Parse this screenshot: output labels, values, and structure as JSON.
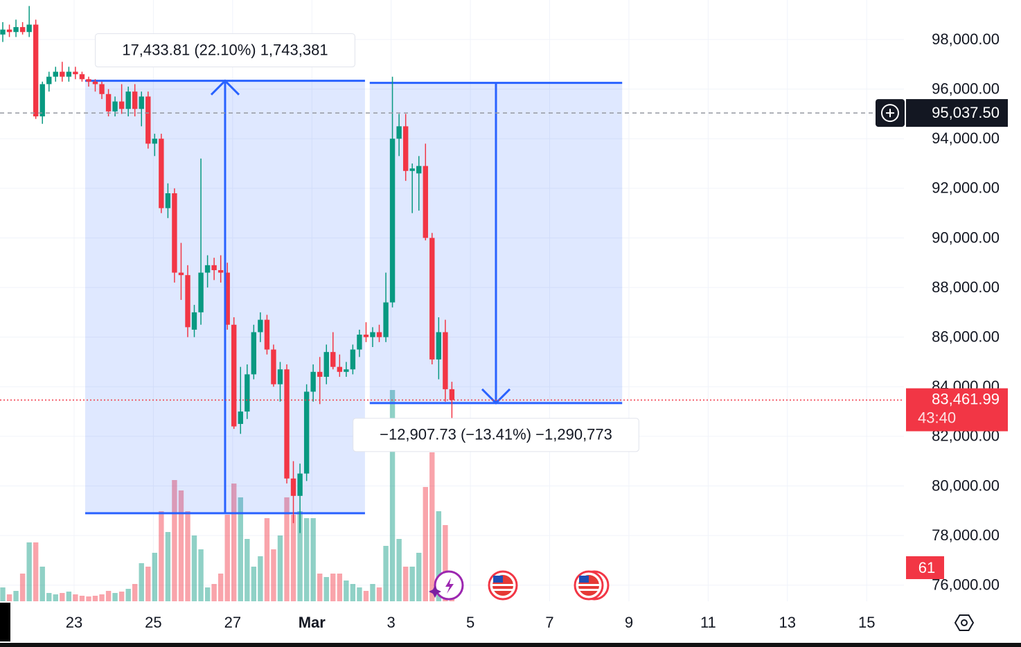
{
  "chart_data": {
    "type": "candlestick",
    "xlim": [
      21.13,
      43.94
    ],
    "ylim": [
      75350,
      99592
    ],
    "grid": true,
    "up_color": "#089981",
    "down_color": "#f23645",
    "xticks": [
      23,
      25,
      27,
      {
        "value": 29,
        "label": "Mar"
      },
      {
        "value": 31,
        "label": "3"
      },
      {
        "value": 33,
        "label": "5"
      },
      {
        "value": 35,
        "label": "7"
      },
      {
        "value": 37,
        "label": "9"
      },
      {
        "value": 39,
        "label": "11"
      },
      {
        "value": 41,
        "label": "13"
      },
      {
        "value": 43,
        "label": "15"
      }
    ],
    "yticks": [
      {
        "value": 76000,
        "label": "76,000.00"
      },
      {
        "value": 78000,
        "label": "78,000.00"
      },
      {
        "value": 80000,
        "label": "80,000.00"
      },
      {
        "value": 82000,
        "label": "82,000.00"
      },
      {
        "value": 84000,
        "label": "84,000.00"
      },
      {
        "value": 86000,
        "label": "86,000.00"
      },
      {
        "value": 88000,
        "label": "88,000.00"
      },
      {
        "value": 90000,
        "label": "90,000.00"
      },
      {
        "value": 92000,
        "label": "92,000.00"
      },
      {
        "value": 94000,
        "label": "94,000.00"
      },
      {
        "value": 96000,
        "label": "96,000.00"
      },
      {
        "value": 98000,
        "label": "98,000.00"
      }
    ],
    "x": [
      21.2,
      21.367,
      21.533,
      21.7,
      21.867,
      22.033,
      22.2,
      22.367,
      22.533,
      22.7,
      22.867,
      23.033,
      23.2,
      23.367,
      23.533,
      23.7,
      23.867,
      24.033,
      24.2,
      24.367,
      24.533,
      24.7,
      24.867,
      25.033,
      25.2,
      25.367,
      25.533,
      25.7,
      25.867,
      26.033,
      26.2,
      26.367,
      26.533,
      26.7,
      26.867,
      27.033,
      27.2,
      27.367,
      27.533,
      27.7,
      27.867,
      28.033,
      28.2,
      28.367,
      28.533,
      28.7,
      28.867,
      29.033,
      29.2,
      29.367,
      29.533,
      29.7,
      29.867,
      30.033,
      30.2,
      30.367,
      30.533,
      30.7,
      30.867,
      31.033,
      31.2,
      31.367,
      31.533,
      31.7,
      31.867,
      32.033,
      32.2,
      32.367,
      32.533
    ],
    "open": [
      98200,
      98400,
      98300,
      98500,
      98300,
      98600,
      94900,
      96200,
      96500,
      96700,
      96500,
      96700,
      96600,
      96400,
      96300,
      96200,
      95800,
      95100,
      95500,
      95200,
      95900,
      95200,
      95700,
      93800,
      94000,
      91200,
      91800,
      88600,
      88500,
      86300,
      87000,
      88600,
      88900,
      88700,
      88600,
      86500,
      82500,
      83000,
      84500,
      86200,
      86700,
      85500,
      84100,
      84700,
      80300,
      79600,
      80500,
      83800,
      84600,
      84400,
      85400,
      84800,
      84600,
      84700,
      85500,
      86100,
      86000,
      86200,
      86000,
      87400,
      94000,
      94500,
      92700,
      92600,
      92900,
      90000,
      85100,
      86200,
      83900
    ],
    "high": [
      98700,
      98600,
      98800,
      98700,
      99350,
      98800,
      96300,
      96700,
      96900,
      97100,
      96900,
      96900,
      96700,
      96500,
      96400,
      96300,
      96000,
      95700,
      96200,
      96100,
      96200,
      95900,
      95900,
      94200,
      94200,
      92200,
      92000,
      89800,
      88900,
      87300,
      93200,
      89300,
      89200,
      89300,
      89000,
      86800,
      84800,
      84900,
      86500,
      87000,
      86900,
      85700,
      85000,
      84900,
      81000,
      80900,
      84100,
      84900,
      85200,
      85700,
      86200,
      85300,
      85000,
      85700,
      86300,
      86600,
      86400,
      86500,
      88600,
      96500,
      95000,
      95000,
      93000,
      93300,
      93800,
      90200,
      86800,
      86700,
      84200
    ],
    "low": [
      97900,
      98100,
      98100,
      98200,
      98100,
      94800,
      94600,
      95900,
      96300,
      96300,
      96300,
      96400,
      96300,
      96100,
      95900,
      95600,
      94900,
      94900,
      95000,
      94900,
      94900,
      94500,
      93600,
      93300,
      91000,
      90800,
      88200,
      87500,
      86000,
      86000,
      86500,
      88000,
      88300,
      88200,
      86300,
      82300,
      82100,
      82700,
      84300,
      85800,
      85300,
      84000,
      83400,
      80100,
      78500,
      78100,
      80200,
      83400,
      83300,
      84100,
      84700,
      84400,
      84400,
      84500,
      85200,
      85800,
      85600,
      85800,
      85800,
      87200,
      93300,
      92300,
      91000,
      91100,
      89900,
      84900,
      84300,
      83400,
      82500
    ],
    "close": [
      98400,
      98300,
      98500,
      98300,
      98600,
      94900,
      96200,
      96500,
      96700,
      96500,
      96700,
      96600,
      96400,
      96300,
      96200,
      95800,
      95100,
      95500,
      95200,
      95900,
      95200,
      95700,
      93800,
      94000,
      91200,
      91800,
      88600,
      88500,
      86400,
      87000,
      88600,
      88900,
      88700,
      88600,
      86500,
      82400,
      83000,
      84500,
      86200,
      86700,
      85500,
      84100,
      84700,
      80300,
      79600,
      80500,
      83800,
      84600,
      84400,
      85400,
      84800,
      84600,
      84700,
      85500,
      86100,
      86000,
      86200,
      86000,
      87400,
      94000,
      94500,
      92700,
      92800,
      92900,
      90000,
      85100,
      86200,
      83900,
      83461.99
    ],
    "volume": [
      20,
      10,
      15,
      40,
      85,
      85,
      50,
      12,
      10,
      12,
      14,
      10,
      8,
      7,
      8,
      10,
      15,
      12,
      14,
      18,
      25,
      55,
      50,
      70,
      130,
      100,
      175,
      160,
      130,
      95,
      75,
      20,
      25,
      40,
      125,
      170,
      150,
      90,
      50,
      65,
      120,
      75,
      95,
      150,
      125,
      130,
      120,
      120,
      40,
      35,
      40,
      40,
      30,
      25,
      20,
      15,
      25,
      20,
      80,
      305,
      90,
      50,
      50,
      70,
      165,
      215,
      130,
      110,
      40
    ],
    "measures": [
      {
        "label": "17,433.81 (22.10%) 1,743,381",
        "start_x": 23.28,
        "end_x": 30.34,
        "start_price": 78900,
        "end_price": 96333.81
      },
      {
        "label": "−12,907.73 (−13.41%) −1,290,773",
        "start_x": 30.46,
        "end_x": 36.83,
        "start_price": 96250,
        "end_price": 83342.27
      }
    ],
    "crosshair_price": {
      "value": 95037.5,
      "label": "95,037.50"
    },
    "last_price": {
      "value": 83461.99,
      "label": "83,461.99"
    },
    "countdown": "43:40",
    "badge": "61"
  }
}
